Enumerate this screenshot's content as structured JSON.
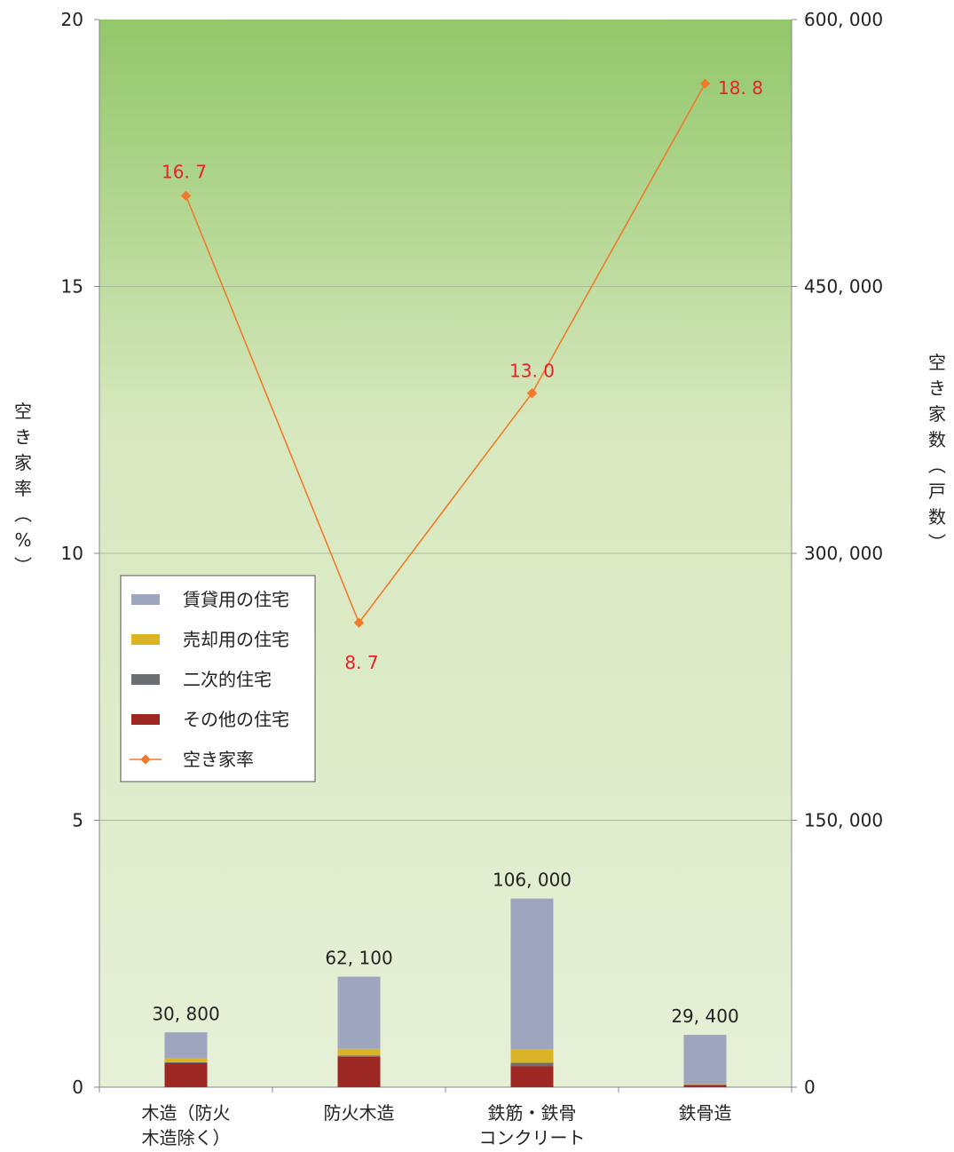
{
  "chart_data": {
    "type": "bar",
    "categories": [
      "木造（防火\n木造除く）",
      "防火木造",
      "鉄筋・鉄骨\nコンクリート",
      "鉄骨造"
    ],
    "left_axis": {
      "label": "空き家率（%）",
      "min": 0,
      "max": 20,
      "ticks": [
        "0",
        "5",
        "10",
        "15",
        "20"
      ]
    },
    "right_axis": {
      "label": "空き家数（戸数）",
      "min": 0,
      "max": 600000,
      "ticks": [
        "0",
        "150, 000",
        "300, 000",
        "450, 000",
        "600, 000"
      ]
    },
    "series": [
      {
        "name": "賃貸用の住宅",
        "type": "bar",
        "color": "#9ea5bf",
        "values": [
          14300,
          40500,
          84600,
          27700
        ]
      },
      {
        "name": "売却用の住宅",
        "type": "bar",
        "color": "#dbb425",
        "values": [
          2500,
          3800,
          7700,
          300
        ]
      },
      {
        "name": "二次的住宅",
        "type": "bar",
        "color": "#6b6e73",
        "values": [
          500,
          800,
          1800,
          200
        ]
      },
      {
        "name": "その他の住宅",
        "type": "bar",
        "color": "#9d2722",
        "values": [
          13500,
          17000,
          11900,
          1200
        ]
      },
      {
        "name": "空き家率",
        "type": "line",
        "color": "#f07a2c",
        "axis": "left",
        "values": [
          16.7,
          8.7,
          13.0,
          18.8
        ]
      }
    ],
    "bar_totals": [
      "30, 800",
      "62, 100",
      "106, 000",
      "29, 400"
    ],
    "rate_labels": [
      "16. 7",
      "8. 7",
      "13. 0",
      "18. 8"
    ],
    "legend_position": "left-middle",
    "grid": true,
    "background": {
      "top": "#92c76a",
      "bottom": "#e6f0d7"
    }
  }
}
